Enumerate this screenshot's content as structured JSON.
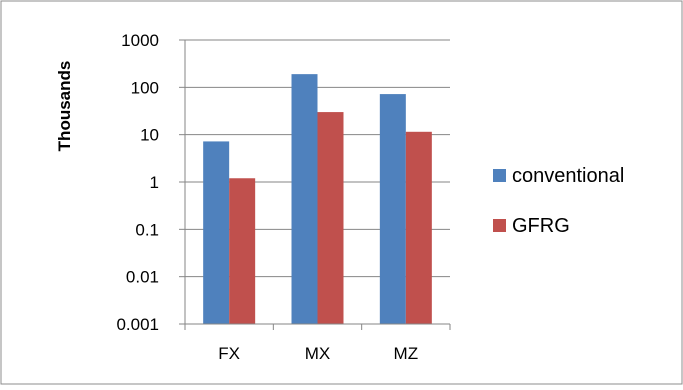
{
  "chart_data": {
    "type": "bar",
    "ylabel": "Thousands",
    "categories": [
      "FX",
      "MX",
      "MZ"
    ],
    "y_scale": "log",
    "ylim": [
      0.001,
      1000
    ],
    "y_ticks": [
      "1000",
      "100",
      "10",
      "1",
      "0.1",
      "0.01",
      "0.001"
    ],
    "grid": true,
    "legend_position": "right",
    "series": [
      {
        "name": "conventional",
        "values": [
          7.2,
          190,
          72
        ],
        "color": "#4f81bd"
      },
      {
        "name": "GFRG",
        "values": [
          1.2,
          30,
          11.5
        ],
        "color": "#c0504d"
      }
    ]
  }
}
